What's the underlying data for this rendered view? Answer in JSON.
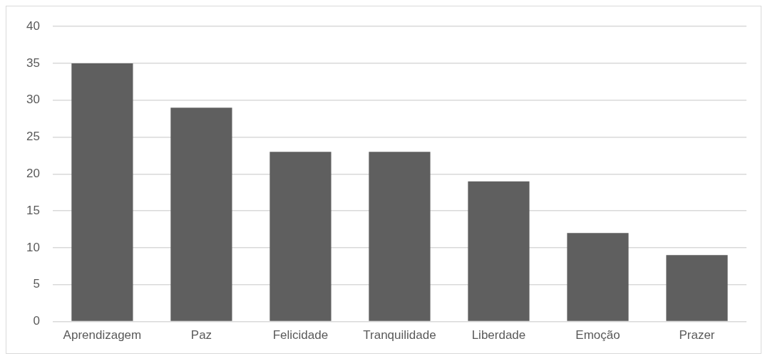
{
  "chart_data": {
    "type": "bar",
    "categories": [
      "Aprendizagem",
      "Paz",
      "Felicidade",
      "Tranquilidade",
      "Liberdade",
      "Emoção",
      "Prazer"
    ],
    "values": [
      35,
      29,
      23,
      23,
      19,
      12,
      9
    ],
    "color": "#5f5f5f",
    "ylim": [
      0,
      40
    ],
    "yticks": [
      0,
      5,
      10,
      15,
      20,
      25,
      30,
      35,
      40
    ],
    "grid": "y"
  }
}
